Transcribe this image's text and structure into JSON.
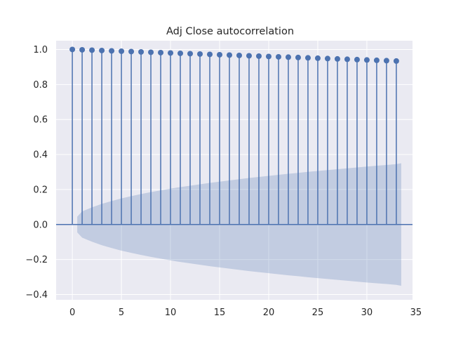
{
  "chart_data": {
    "type": "stem",
    "title": "Adj Close autocorrelation",
    "xlabel": "",
    "ylabel": "",
    "xlim": [
      -1.65,
      34.65
    ],
    "ylim": [
      -0.43,
      1.05
    ],
    "x_ticks": [
      0,
      5,
      10,
      15,
      20,
      25,
      30,
      35
    ],
    "y_ticks": [
      -0.4,
      -0.2,
      0.0,
      0.2,
      0.4,
      0.6,
      0.8,
      1.0
    ],
    "y_tick_labels": [
      "−0.4",
      "−0.2",
      "0.0",
      "0.2",
      "0.4",
      "0.6",
      "0.8",
      "1.0"
    ],
    "grid": true,
    "lags": [
      0,
      1,
      2,
      3,
      4,
      5,
      6,
      7,
      8,
      9,
      10,
      11,
      12,
      13,
      14,
      15,
      16,
      17,
      18,
      19,
      20,
      21,
      22,
      23,
      24,
      25,
      26,
      27,
      28,
      29,
      30,
      31,
      32,
      33
    ],
    "acf": [
      1.0,
      0.998,
      0.996,
      0.994,
      0.992,
      0.99,
      0.988,
      0.986,
      0.984,
      0.982,
      0.98,
      0.978,
      0.976,
      0.974,
      0.972,
      0.97,
      0.968,
      0.966,
      0.964,
      0.962,
      0.96,
      0.958,
      0.956,
      0.954,
      0.952,
      0.95,
      0.948,
      0.946,
      0.944,
      0.942,
      0.94,
      0.938,
      0.936,
      0.934
    ],
    "confidence_band": {
      "x": [
        0.5,
        1,
        2,
        3,
        4,
        5,
        6,
        7,
        8,
        9,
        10,
        11,
        12,
        13,
        14,
        15,
        16,
        17,
        18,
        19,
        20,
        21,
        22,
        23,
        24,
        25,
        26,
        27,
        28,
        29,
        30,
        31,
        32,
        33,
        33.5
      ],
      "upper": [
        0.045,
        0.075,
        0.098,
        0.118,
        0.134,
        0.149,
        0.162,
        0.174,
        0.185,
        0.195,
        0.205,
        0.214,
        0.222,
        0.23,
        0.238,
        0.245,
        0.252,
        0.259,
        0.266,
        0.272,
        0.278,
        0.284,
        0.29,
        0.295,
        0.301,
        0.306,
        0.311,
        0.316,
        0.321,
        0.326,
        0.331,
        0.336,
        0.34,
        0.345,
        0.35
      ]
    },
    "colors": {
      "stem": "#4c72b0",
      "band": "#4c72b0",
      "plot_background": "#eaeaf2",
      "grid": "#ffffff"
    }
  }
}
